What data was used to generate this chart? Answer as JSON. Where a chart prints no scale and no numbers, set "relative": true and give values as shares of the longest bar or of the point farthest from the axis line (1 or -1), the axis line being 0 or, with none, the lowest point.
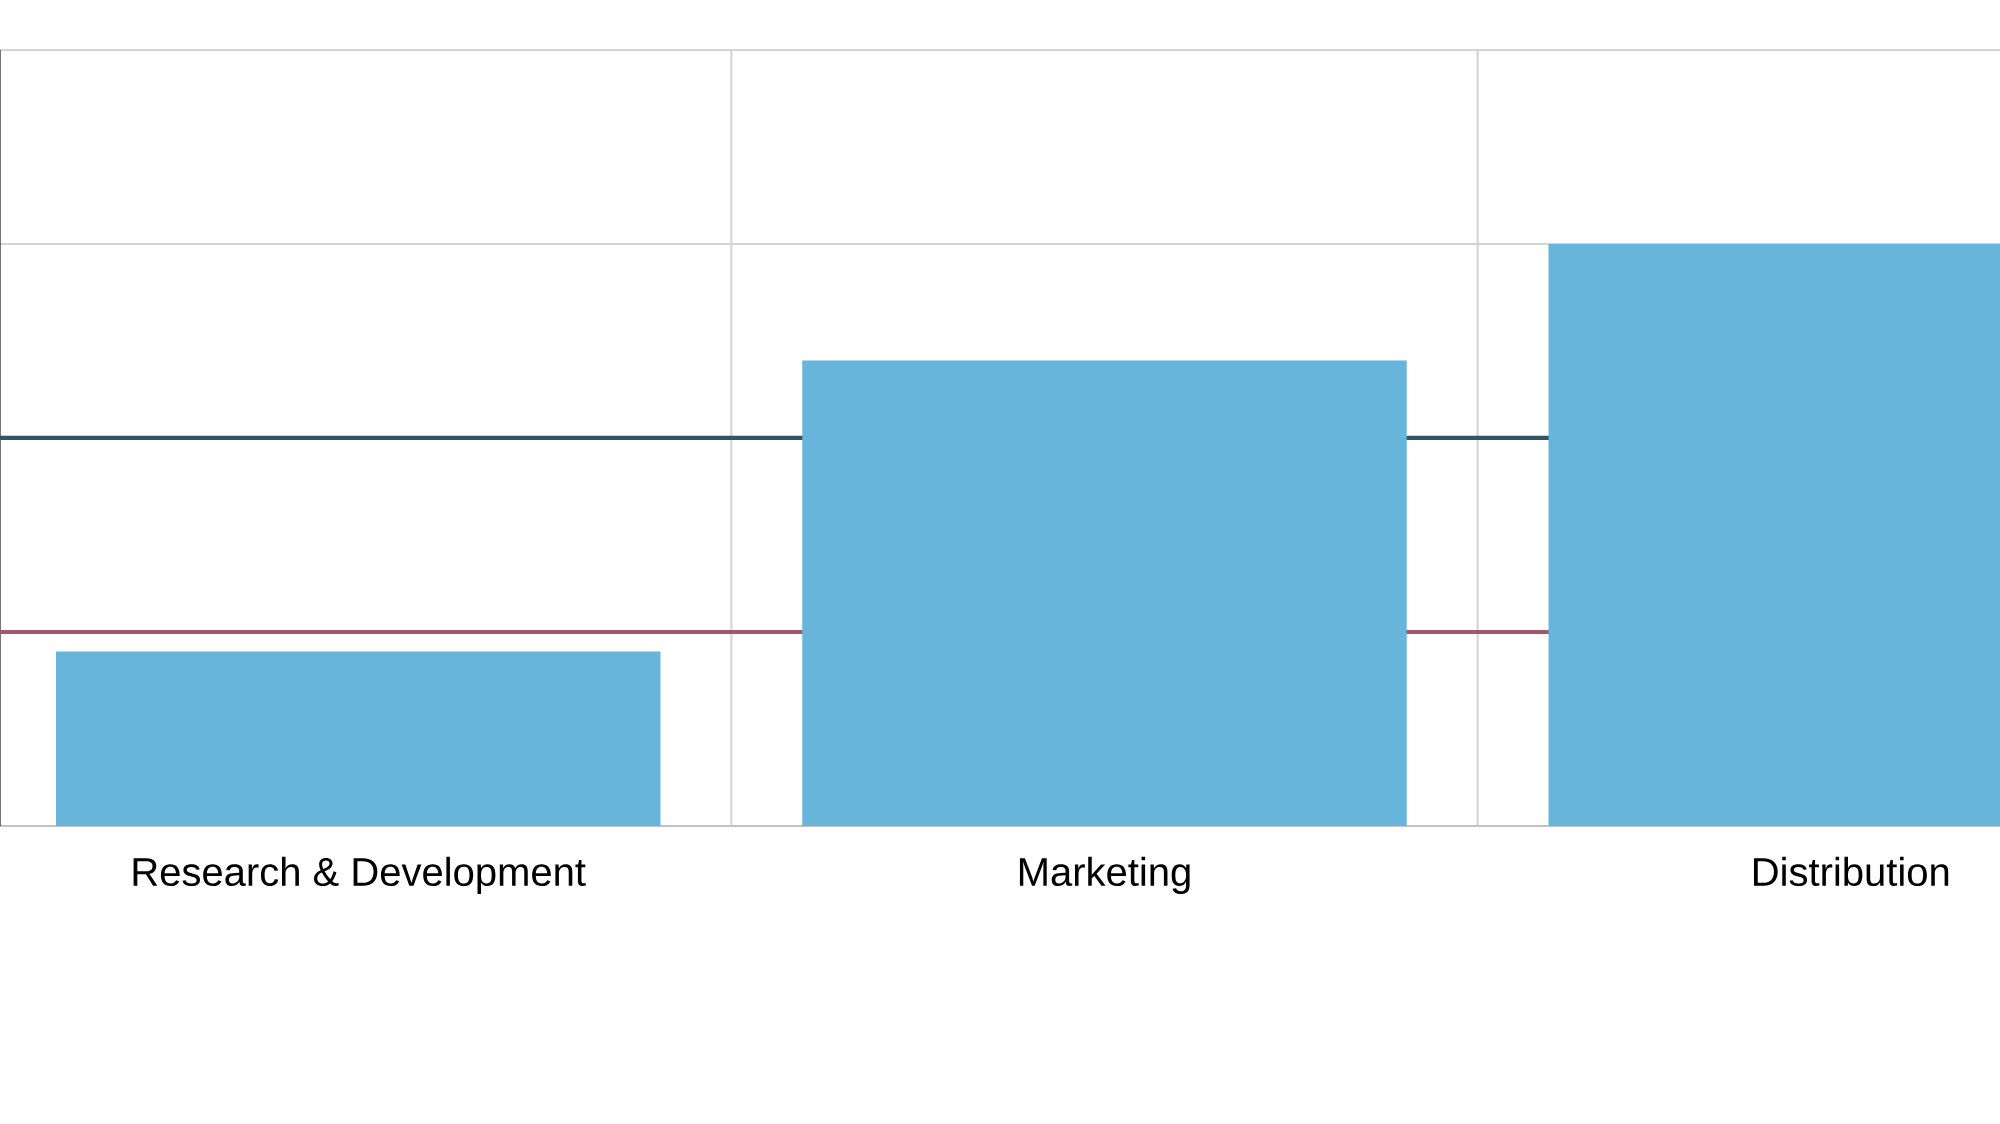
{
  "chart_data": {
    "type": "bar",
    "relative": true,
    "categories": [
      "Research & Development",
      "Marketing",
      "Distribution"
    ],
    "values": [
      0.3,
      0.8,
      1
    ],
    "color": "#67b5db",
    "grid": true,
    "ref_lines": [
      {
        "axis": "y",
        "value": 0.667,
        "color": "#2f5566"
      },
      {
        "axis": "y",
        "value": 0.333,
        "color": "#9c5a6c"
      }
    ]
  }
}
